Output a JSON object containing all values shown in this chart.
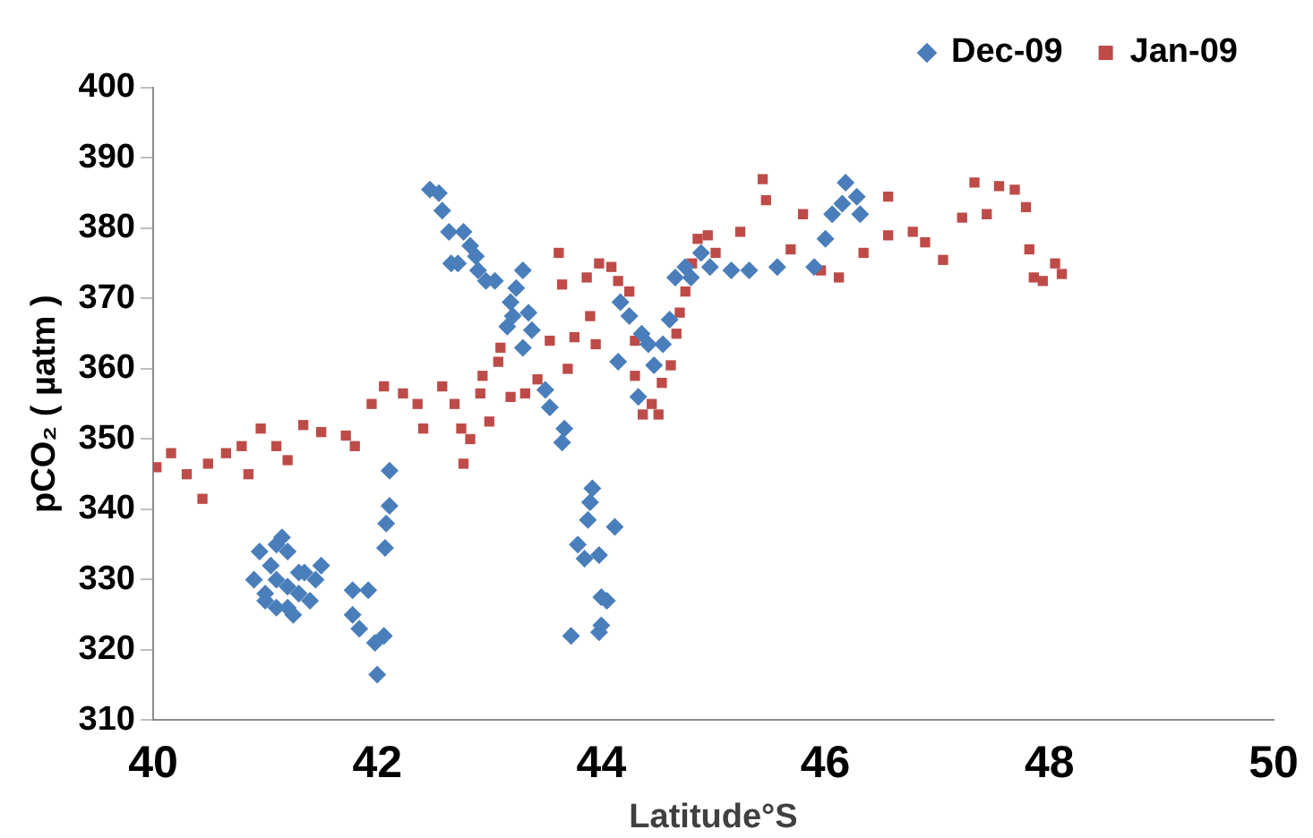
{
  "chart_data": {
    "type": "scatter",
    "xlabel": "Latitude°S",
    "ylabel": "pCO₂ ( µatm )",
    "xlim": [
      40,
      50
    ],
    "xticks": [
      40,
      42,
      44,
      46,
      48,
      50
    ],
    "ylim": [
      310,
      400
    ],
    "yticks": [
      310,
      320,
      330,
      340,
      350,
      360,
      370,
      380,
      390,
      400
    ],
    "grid": false,
    "legend": "top right",
    "series": [
      {
        "name": "Dec-09",
        "color": "#4a7ebb",
        "marker": "diamond",
        "x": [
          41.0,
          41.05,
          41.1,
          41.15,
          41.2,
          41.1,
          41.0,
          41.2,
          41.25,
          41.3,
          41.3,
          41.2,
          41.1,
          41.35,
          41.5,
          41.45,
          41.4,
          40.9,
          40.95,
          41.78,
          41.92,
          41.78,
          41.84,
          41.98,
          42.06,
          42.0,
          42.11,
          42.11,
          42.08,
          42.07,
          42.47,
          42.55,
          42.58,
          42.64,
          42.77,
          42.83,
          42.66,
          42.72,
          42.88,
          42.9,
          42.97,
          43.05,
          43.3,
          43.24,
          43.19,
          43.21,
          43.16,
          43.35,
          43.38,
          43.3,
          43.5,
          43.54,
          43.65,
          43.67,
          43.92,
          43.9,
          43.88,
          44.12,
          43.79,
          43.85,
          43.98,
          44.0,
          44.05,
          44.0,
          43.98,
          43.73,
          44.17,
          44.25,
          44.36,
          44.42,
          44.15,
          44.33,
          44.47,
          44.55,
          44.61,
          44.66,
          44.75,
          44.89,
          44.97,
          44.8,
          45.16,
          45.32,
          45.57,
          45.9,
          46.0,
          46.06,
          46.15,
          46.18,
          46.28,
          46.31
        ],
        "values": [
          328,
          332,
          335,
          336,
          334,
          330,
          327,
          326,
          325,
          328,
          331,
          329,
          326,
          331,
          332,
          330,
          327,
          330,
          334,
          328.5,
          328.5,
          325,
          323,
          321,
          322,
          316.5,
          345.5,
          340.5,
          338,
          334.5,
          385.5,
          385,
          382.5,
          379.5,
          379.5,
          377.5,
          375,
          375,
          376,
          374,
          372.5,
          372.5,
          374,
          371.5,
          369.5,
          367.5,
          366,
          368,
          365.5,
          363,
          357,
          354.5,
          349.5,
          351.5,
          343,
          341,
          338.5,
          337.5,
          335,
          333,
          333.5,
          327.5,
          327,
          323.5,
          322.5,
          322,
          369.5,
          367.5,
          365,
          363.5,
          361,
          356,
          360.5,
          363.5,
          367,
          373,
          374.5,
          376.5,
          374.5,
          373,
          374,
          374,
          374.5,
          374.5,
          378.5,
          382,
          383.5,
          386.5,
          384.5,
          382
        ]
      },
      {
        "name": "Jan-09",
        "color": "#be4b48",
        "marker": "square",
        "x": [
          40.03,
          40.16,
          40.3,
          40.44,
          40.49,
          40.65,
          40.79,
          40.85,
          40.96,
          41.1,
          41.2,
          41.34,
          41.5,
          41.72,
          41.8,
          41.95,
          42.06,
          42.23,
          42.36,
          42.41,
          42.58,
          42.69,
          42.75,
          42.77,
          42.83,
          42.92,
          42.94,
          43.0,
          43.08,
          43.1,
          43.19,
          43.32,
          43.43,
          43.54,
          43.62,
          43.65,
          43.7,
          43.76,
          43.87,
          43.9,
          43.95,
          43.98,
          44.09,
          44.15,
          44.25,
          44.3,
          44.3,
          44.37,
          44.45,
          44.51,
          44.54,
          44.62,
          44.67,
          44.7,
          44.75,
          44.81,
          44.86,
          44.95,
          45.02,
          45.24,
          45.44,
          45.47,
          45.69,
          45.8,
          45.96,
          46.12,
          46.34,
          46.56,
          46.56,
          46.78,
          46.89,
          47.05,
          47.22,
          47.33,
          47.44,
          47.55,
          47.69,
          47.79,
          47.82,
          47.86,
          47.94,
          48.05,
          48.11
        ],
        "values": [
          346,
          348,
          345,
          341.5,
          346.5,
          348,
          349,
          345,
          351.5,
          349,
          347,
          352,
          351,
          350.5,
          349,
          355,
          357.5,
          356.5,
          355,
          351.5,
          357.5,
          355,
          351.5,
          346.5,
          350,
          356.5,
          359,
          352.5,
          361,
          363,
          356,
          356.5,
          358.5,
          364,
          376.5,
          372,
          360,
          364.5,
          373,
          367.5,
          363.5,
          375,
          374.5,
          372.5,
          371,
          364,
          359,
          353.5,
          355,
          353.5,
          358,
          360.5,
          365,
          368,
          371,
          375,
          378.5,
          379,
          376.5,
          379.5,
          387,
          384,
          377,
          382,
          374,
          373,
          376.5,
          384.5,
          379,
          379.5,
          378,
          375.5,
          381.5,
          386.5,
          382,
          386,
          385.5,
          383,
          377,
          373,
          372.5,
          375,
          373.5
        ]
      }
    ]
  }
}
